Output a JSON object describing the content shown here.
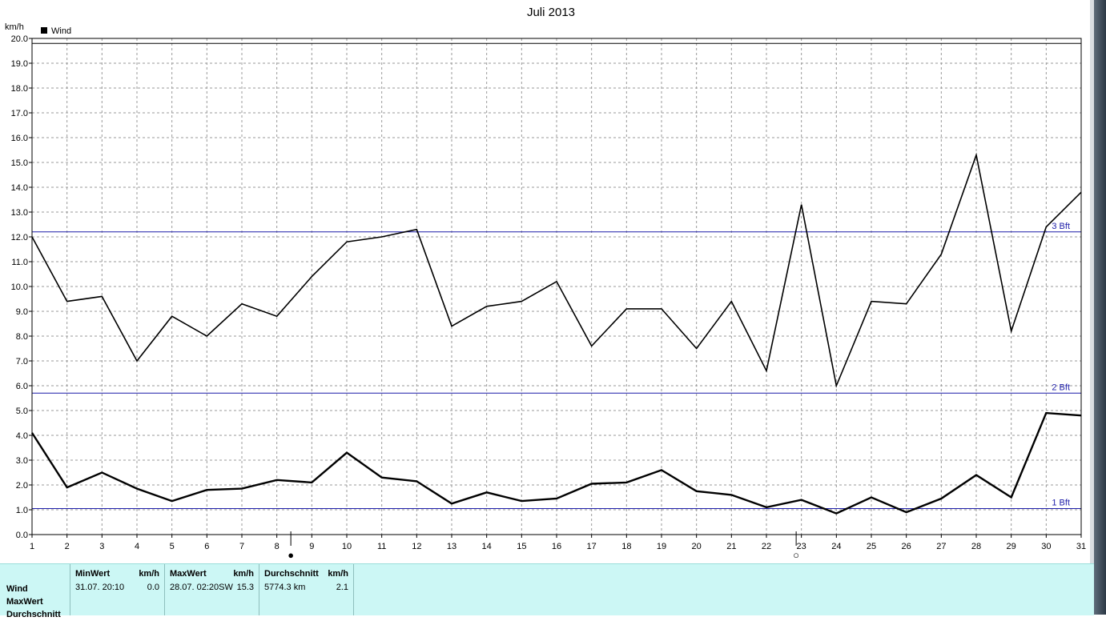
{
  "chart_data": {
    "type": "line",
    "title": "Juli 2013",
    "ylabel": "km/h",
    "xlabel": "",
    "ylim": [
      0,
      20
    ],
    "yticks": [
      "0.0",
      "1.0",
      "2.0",
      "3.0",
      "4.0",
      "5.0",
      "6.0",
      "7.0",
      "8.0",
      "9.0",
      "10.0",
      "11.0",
      "12.0",
      "13.0",
      "14.0",
      "15.0",
      "16.0",
      "17.0",
      "18.0",
      "19.0",
      "20.0"
    ],
    "x": [
      1,
      2,
      3,
      4,
      5,
      6,
      7,
      8,
      9,
      10,
      11,
      12,
      13,
      14,
      15,
      16,
      17,
      18,
      19,
      20,
      21,
      22,
      23,
      24,
      25,
      26,
      27,
      28,
      29,
      30,
      31
    ],
    "grid": true,
    "legend": {
      "position": "top-left",
      "entries": [
        "Wind"
      ]
    },
    "series": [
      {
        "name": "Wind",
        "role": "MaxWert",
        "values": [
          12.0,
          9.4,
          9.6,
          7.0,
          8.8,
          8.0,
          9.3,
          8.8,
          10.4,
          11.8,
          12.0,
          12.3,
          8.4,
          9.2,
          9.4,
          10.2,
          7.6,
          9.1,
          9.1,
          7.5,
          9.4,
          6.6,
          13.3,
          6.0,
          9.4,
          9.3,
          11.3,
          15.3,
          8.2,
          12.4,
          13.8
        ]
      },
      {
        "name": "Wind",
        "role": "Durchschnitt",
        "values": [
          4.1,
          1.9,
          2.5,
          1.85,
          1.35,
          1.8,
          1.85,
          2.2,
          2.1,
          3.3,
          2.3,
          2.15,
          1.25,
          1.7,
          1.35,
          1.45,
          2.05,
          2.1,
          2.6,
          1.75,
          1.6,
          1.1,
          1.4,
          0.85,
          1.5,
          0.9,
          1.45,
          2.4,
          1.5,
          4.9,
          4.8
        ]
      }
    ],
    "reference_lines": [
      {
        "value": 1.05,
        "label": "1 Bft"
      },
      {
        "value": 5.7,
        "label": "2 Bft"
      },
      {
        "value": 12.2,
        "label": "3 Bft"
      }
    ],
    "border_line": 19.8,
    "markers": [
      {
        "x": 8.4,
        "symbol": "●"
      },
      {
        "x": 22.85,
        "symbol": "○"
      }
    ]
  },
  "stats": {
    "row_labels": [
      "Wind",
      "MaxWert",
      "Durchschnitt"
    ],
    "columns": [
      {
        "header": "MinWert",
        "unit": "km/h",
        "value_left": "31.07.  20:10",
        "value_right": "0.0"
      },
      {
        "header": "MaxWert",
        "unit": "km/h",
        "value_left": "28.07.  02:20SW",
        "value_right": "15.3"
      },
      {
        "header": "Durchschnitt",
        "unit": "km/h",
        "value_left": "5774.3 km",
        "value_right": "2.1"
      }
    ]
  },
  "colors": {
    "line": "#000000",
    "reference": "#1c1ca8",
    "grid": "#9a9a9a",
    "panel": "#ccf7f5"
  }
}
